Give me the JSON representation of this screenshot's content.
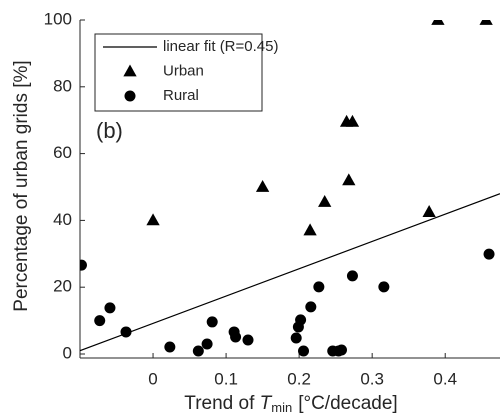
{
  "chart_data": {
    "type": "scatter",
    "xlabel": {
      "text": "Trend of ",
      "symbol": "T",
      "subscript": "min",
      "unit": "[°C/decade]"
    },
    "ylabel": "Percentage of urban grids [%]",
    "annotation": "(b)",
    "xlim": [
      -0.1,
      0.475
    ],
    "ylim": [
      -1.2,
      100
    ],
    "xticks": [
      0,
      0.1,
      0.2,
      0.3,
      0.4
    ],
    "yticks": [
      0,
      20,
      40,
      60,
      80,
      100
    ],
    "legend": "top-left",
    "series": [
      {
        "name": "linear fit (R=0.45)",
        "kind": "line",
        "color": "#000000",
        "x": [
          -0.1,
          0.475
        ],
        "values": [
          1,
          48
        ]
      },
      {
        "name": "Urban",
        "kind": "triangle",
        "color": "#000000",
        "x": [
          0.0,
          0.15,
          0.215,
          0.235,
          0.265,
          0.273,
          0.268,
          0.378,
          0.39,
          0.456
        ],
        "values": [
          40,
          50,
          37,
          45.5,
          69.5,
          69.5,
          52,
          42.5,
          100,
          100
        ]
      },
      {
        "name": "Rural",
        "kind": "circle",
        "color": "#000000",
        "x": [
          -0.098,
          -0.073,
          -0.059,
          -0.037,
          0.023,
          0.062,
          0.074,
          0.081,
          0.111,
          0.113,
          0.13,
          0.196,
          0.199,
          0.202,
          0.206,
          0.216,
          0.227,
          0.246,
          0.254,
          0.258,
          0.273,
          0.316,
          0.46
        ],
        "values": [
          26.6,
          10,
          13.8,
          6.6,
          2.1,
          0.9,
          3,
          9.6,
          6.6,
          5.1,
          4.2,
          4.8,
          8.1,
          10.2,
          0.9,
          14.1,
          20.1,
          0.9,
          0.9,
          1.2,
          23.4,
          20.1,
          29.9
        ]
      }
    ]
  }
}
